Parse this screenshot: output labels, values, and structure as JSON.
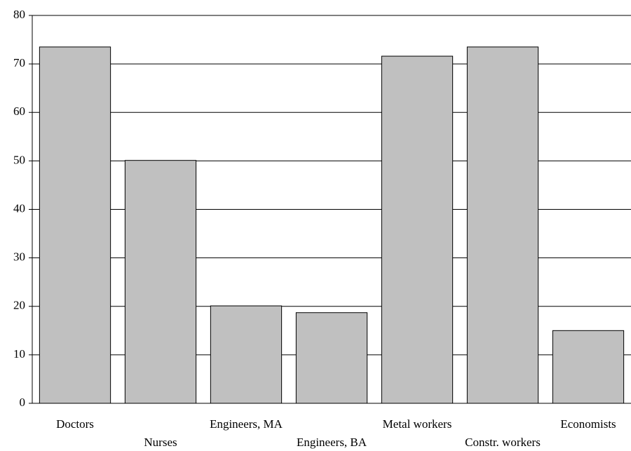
{
  "chart_data": {
    "type": "bar",
    "categories": [
      "Doctors",
      "Nurses",
      "Engineers, MA",
      "Engineers, BA",
      "Metal workers",
      "Constr. workers",
      "Economists"
    ],
    "values": [
      73.5,
      50.1,
      20.1,
      18.7,
      71.6,
      73.5,
      15.0
    ],
    "color": "#c0c0c0",
    "ylim": [
      0,
      80
    ],
    "yticks": [
      0,
      10,
      20,
      30,
      40,
      50,
      60,
      70,
      80
    ],
    "grid": true
  }
}
